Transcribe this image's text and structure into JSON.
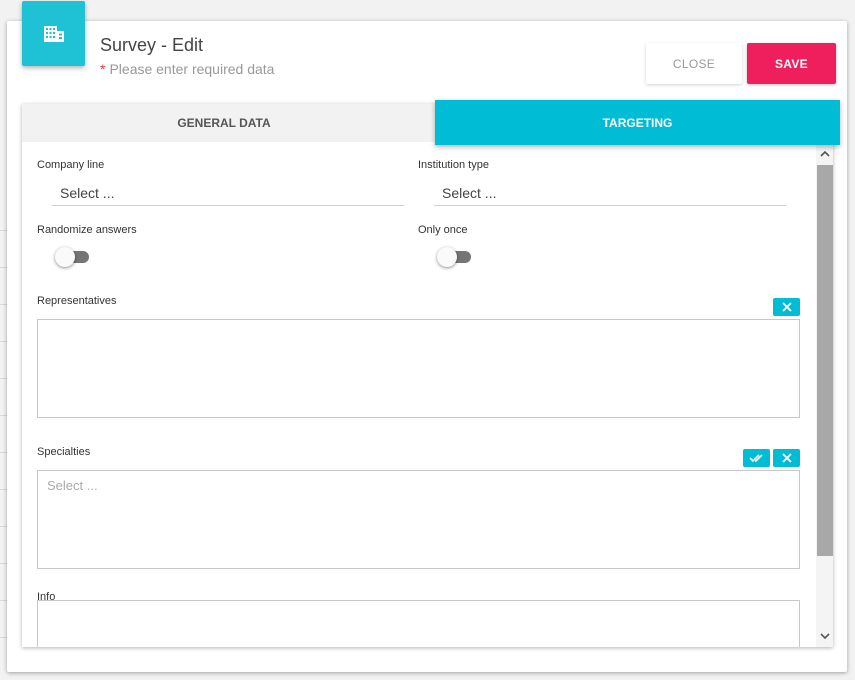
{
  "modal": {
    "title": "Survey - Edit",
    "subtitle_required_mark": "*",
    "subtitle": "Please enter required data",
    "header_icon": "building-icon",
    "accent_color": "#00bcd4"
  },
  "actions": {
    "close_label": "CLOSE",
    "save_label": "SAVE",
    "save_color": "#ef1f5e"
  },
  "tabs": [
    {
      "label": "GENERAL DATA",
      "active": false
    },
    {
      "label": "TARGETING",
      "active": true
    }
  ],
  "form": {
    "company_line": {
      "label": "Company line",
      "value": "Select ..."
    },
    "institution_type": {
      "label": "Institution type",
      "value": "Select ..."
    },
    "randomize_answers": {
      "label": "Randomize answers",
      "on": false
    },
    "only_once": {
      "label": "Only once",
      "on": false
    },
    "representatives": {
      "label": "Representatives",
      "placeholder": ""
    },
    "specialties": {
      "label": "Specialties",
      "placeholder": "Select ..."
    },
    "info": {
      "label": "Info"
    }
  },
  "icons": {
    "clear": "close-icon",
    "select_all": "double-check-icon",
    "scroll_up": "chevron-up-icon",
    "scroll_down": "chevron-down-icon"
  }
}
